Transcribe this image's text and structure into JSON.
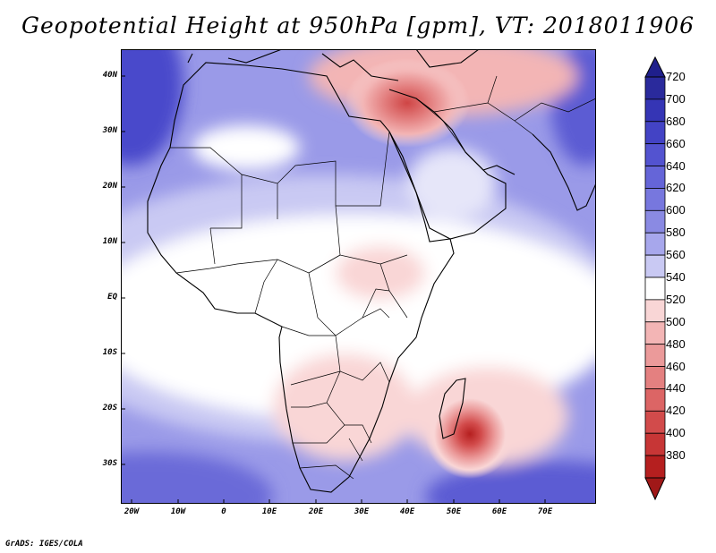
{
  "title": "Geopotential Height at 950hPa [gpm], VT: 2018011906",
  "credit": "GrADS: IGES/COLA",
  "lat_labels": [
    "40N",
    "30N",
    "20N",
    "10N",
    "EQ",
    "10S",
    "20S",
    "30S"
  ],
  "lon_labels": [
    "20W",
    "10W",
    "0",
    "10E",
    "20E",
    "30E",
    "40E",
    "50E",
    "60E",
    "70E"
  ],
  "colorbar": {
    "levels": [
      "720",
      "700",
      "680",
      "660",
      "640",
      "620",
      "600",
      "580",
      "560",
      "540",
      "520",
      "500",
      "480",
      "460",
      "440",
      "420",
      "400",
      "380"
    ],
    "colors": [
      "#2a2a9c",
      "#3535b5",
      "#4343c5",
      "#5353d0",
      "#6565d8",
      "#7777de",
      "#8a8ae3",
      "#a7a7ec",
      "#c9c9f3",
      "#ffffff",
      "#f9d6d6",
      "#f3b5b5",
      "#eb9a9a",
      "#e48080",
      "#dc6565",
      "#d24b4b",
      "#c73636",
      "#b51f1f"
    ]
  },
  "colors": {
    "high": "#3f3fc4",
    "mid_blue": "#8c8ce4",
    "light_blue": "#c9c9f3",
    "neutral": "#ffffff",
    "low": "#c42a2a"
  }
}
